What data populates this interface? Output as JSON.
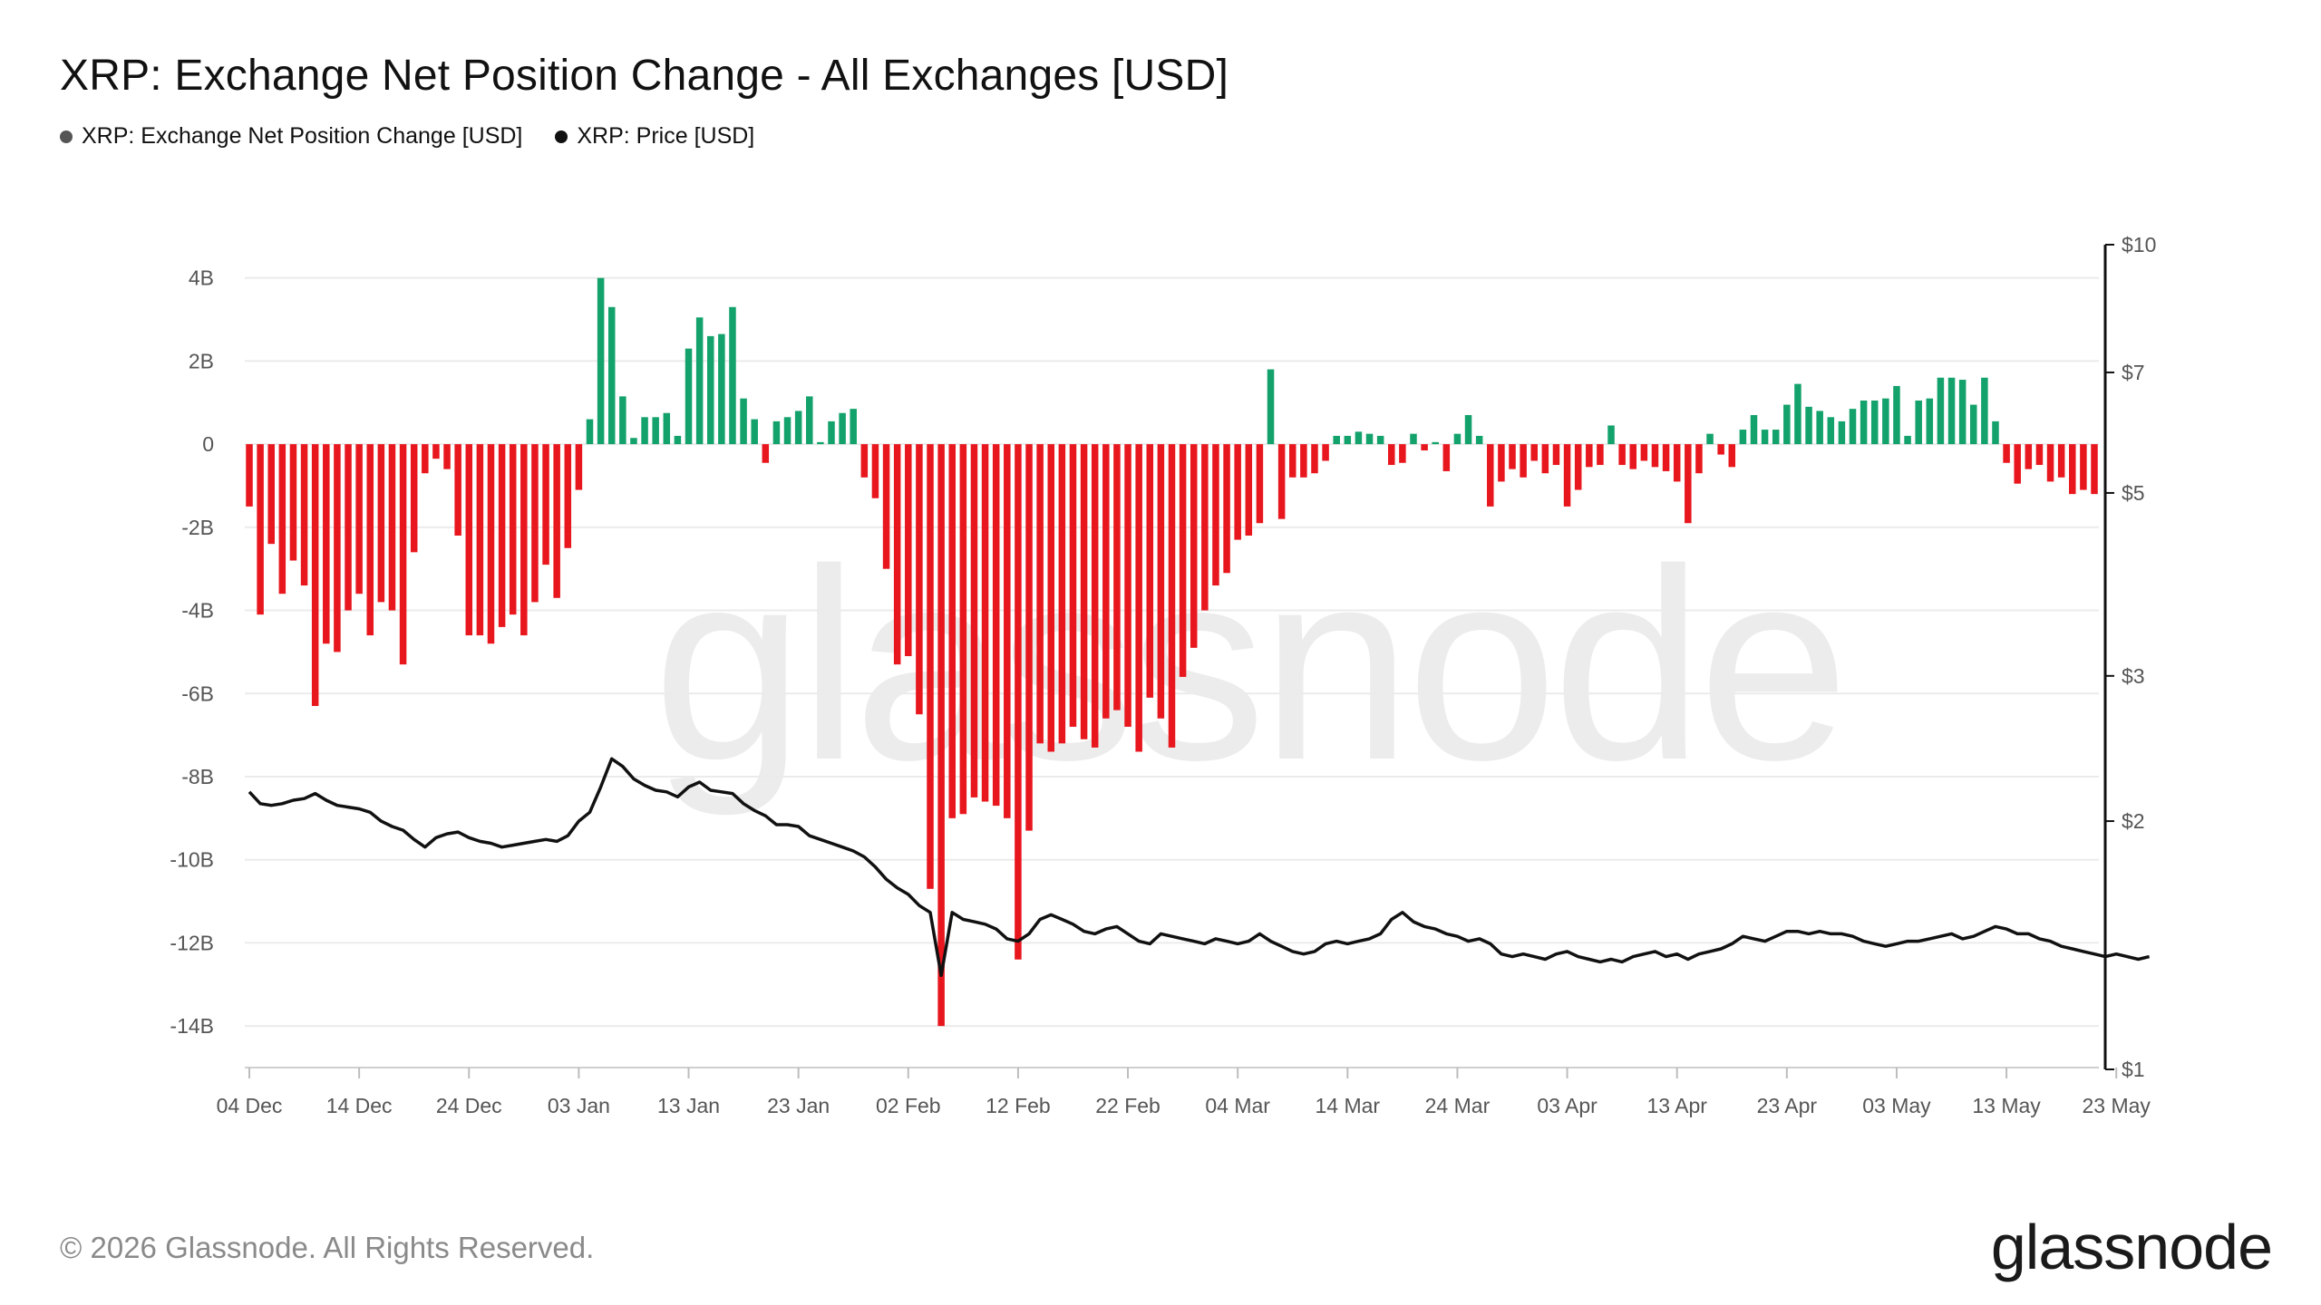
{
  "title": "XRP: Exchange Net Position Change - All Exchanges [USD]",
  "legend": [
    {
      "label": "XRP: Exchange Net Position Change [USD]",
      "color": "#555555"
    },
    {
      "label": "XRP: Price [USD]",
      "color": "#111111"
    }
  ],
  "watermark": "glassnode",
  "footer": {
    "copyright": "© 2026 Glassnode. All Rights Reserved.",
    "logo": "glassnode"
  },
  "colors": {
    "positive": "#13a26b",
    "negative": "#e8161d",
    "price": "#111111",
    "grid": "#ebebeb"
  },
  "chart_data": {
    "type": "bar",
    "title": "XRP: Exchange Net Position Change - All Exchanges [USD]",
    "x_start_date": "2025-12-04",
    "x_end_date": "2026-05-26",
    "y_left": {
      "min": -15,
      "max": 4.8,
      "ticks": [
        4,
        2,
        0,
        -2,
        -4,
        -6,
        -8,
        -10,
        -12,
        -14
      ],
      "tick_labels": [
        "4B",
        "2B",
        "0",
        "-2B",
        "-4B",
        "-6B",
        "-8B",
        "-10B",
        "-12B",
        "-14B"
      ],
      "unit": "B USD"
    },
    "y_right": {
      "scale": "log",
      "min": 1,
      "max": 10,
      "ticks": [
        10,
        7,
        5,
        3,
        2,
        1
      ],
      "tick_labels": [
        "$10",
        "$7",
        "$5",
        "$3",
        "$2",
        "$1"
      ]
    },
    "x_ticks": [
      "04 Dec",
      "14 Dec",
      "24 Dec",
      "03 Jan",
      "13 Jan",
      "23 Jan",
      "02 Feb",
      "12 Feb",
      "22 Feb",
      "04 Mar",
      "14 Mar",
      "24 Mar",
      "03 Apr",
      "13 Apr",
      "23 Apr",
      "03 May",
      "13 May",
      "23 May"
    ],
    "grid": true,
    "legend_position": "top-left",
    "series": [
      {
        "name": "XRP: Exchange Net Position Change [USD]",
        "type": "bar",
        "values": [
          -1.5,
          -4.1,
          -2.4,
          -3.6,
          -2.8,
          -3.4,
          -6.3,
          -4.8,
          -5.0,
          -4.0,
          -3.6,
          -4.6,
          -3.8,
          -4.0,
          -5.3,
          -2.6,
          -0.7,
          -0.35,
          -0.6,
          -2.2,
          -4.6,
          -4.6,
          -4.8,
          -4.4,
          -4.1,
          -4.6,
          -3.8,
          -2.9,
          -3.7,
          -2.5,
          -1.1,
          0.6,
          4.0,
          3.3,
          1.15,
          0.15,
          0.65,
          0.65,
          0.75,
          0.2,
          2.3,
          3.05,
          2.6,
          2.65,
          3.3,
          1.1,
          0.6,
          -0.45,
          0.55,
          0.65,
          0.8,
          1.15,
          0.05,
          0.55,
          0.75,
          0.85,
          -0.8,
          -1.3,
          -3.0,
          -5.3,
          -5.1,
          -6.5,
          -10.7,
          -14.0,
          -9.0,
          -8.9,
          -8.5,
          -8.6,
          -8.7,
          -9.0,
          -12.4,
          -9.3,
          -7.2,
          -7.4,
          -7.2,
          -6.8,
          -7.1,
          -7.3,
          -6.6,
          -6.4,
          -6.8,
          -7.4,
          -6.1,
          -6.6,
          -7.3,
          -5.6,
          -4.9,
          -4.0,
          -3.4,
          -3.1,
          -2.3,
          -2.2,
          -1.9,
          1.8,
          -1.8,
          -0.8,
          -0.8,
          -0.7,
          -0.4,
          0.2,
          0.2,
          0.3,
          0.25,
          0.2,
          -0.5,
          -0.45,
          0.25,
          -0.15,
          0.05,
          -0.65,
          0.25,
          0.7,
          0.2,
          -1.5,
          -0.9,
          -0.6,
          -0.8,
          -0.4,
          -0.7,
          -0.5,
          -1.5,
          -1.1,
          -0.55,
          -0.5,
          0.45,
          -0.5,
          -0.6,
          -0.4,
          -0.55,
          -0.65,
          -0.9,
          -1.9,
          -0.7,
          0.25,
          -0.25,
          -0.55,
          0.35,
          0.7,
          0.35,
          0.35,
          0.95,
          1.45,
          0.9,
          0.8,
          0.65,
          0.55,
          0.85,
          1.05,
          1.05,
          1.1,
          1.4,
          0.2,
          1.05,
          1.1,
          1.6,
          1.6,
          1.55,
          0.95,
          1.6,
          0.55,
          -0.45,
          -0.95,
          -0.6,
          -0.5,
          -0.9,
          -0.8,
          -1.2,
          -1.1,
          -1.2
        ]
      },
      {
        "name": "XRP: Price [USD]",
        "type": "line",
        "axis": "right",
        "values": [
          2.17,
          2.1,
          2.09,
          2.1,
          2.12,
          2.13,
          2.16,
          2.12,
          2.09,
          2.08,
          2.07,
          2.05,
          2.0,
          1.97,
          1.95,
          1.9,
          1.86,
          1.91,
          1.93,
          1.94,
          1.91,
          1.89,
          1.88,
          1.86,
          1.87,
          1.88,
          1.89,
          1.9,
          1.89,
          1.92,
          2.0,
          2.05,
          2.2,
          2.38,
          2.33,
          2.25,
          2.21,
          2.18,
          2.17,
          2.14,
          2.2,
          2.23,
          2.18,
          2.17,
          2.16,
          2.1,
          2.06,
          2.03,
          1.98,
          1.98,
          1.97,
          1.92,
          1.9,
          1.88,
          1.86,
          1.84,
          1.81,
          1.76,
          1.7,
          1.66,
          1.63,
          1.58,
          1.55,
          1.3,
          1.55,
          1.52,
          1.51,
          1.5,
          1.48,
          1.44,
          1.43,
          1.46,
          1.52,
          1.54,
          1.52,
          1.5,
          1.47,
          1.46,
          1.48,
          1.49,
          1.46,
          1.43,
          1.42,
          1.46,
          1.45,
          1.44,
          1.43,
          1.42,
          1.44,
          1.43,
          1.42,
          1.43,
          1.46,
          1.43,
          1.41,
          1.39,
          1.38,
          1.39,
          1.42,
          1.43,
          1.42,
          1.43,
          1.44,
          1.46,
          1.52,
          1.55,
          1.51,
          1.49,
          1.48,
          1.46,
          1.45,
          1.43,
          1.44,
          1.42,
          1.38,
          1.37,
          1.38,
          1.37,
          1.36,
          1.38,
          1.39,
          1.37,
          1.36,
          1.35,
          1.36,
          1.35,
          1.37,
          1.38,
          1.39,
          1.37,
          1.38,
          1.36,
          1.38,
          1.39,
          1.4,
          1.42,
          1.45,
          1.44,
          1.43,
          1.45,
          1.47,
          1.47,
          1.46,
          1.47,
          1.46,
          1.46,
          1.45,
          1.43,
          1.42,
          1.41,
          1.42,
          1.43,
          1.43,
          1.44,
          1.45,
          1.46,
          1.44,
          1.45,
          1.47,
          1.49,
          1.48,
          1.46,
          1.46,
          1.44,
          1.43,
          1.41,
          1.4,
          1.39,
          1.38,
          1.37,
          1.38,
          1.37,
          1.36,
          1.37
        ]
      }
    ]
  }
}
